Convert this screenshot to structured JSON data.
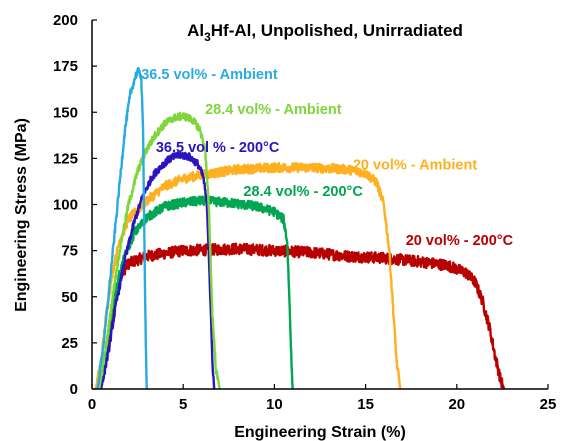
{
  "chart_data": {
    "type": "line",
    "title": {
      "main": "Al",
      "sub": "3",
      "rest": "Hf-Al, Unpolished, Unirradiated"
    },
    "xlabel": "Engineering  Strain (%)",
    "ylabel": "Engineering  Stress (MPa)",
    "xlim": [
      0,
      25
    ],
    "ylim": [
      0,
      200
    ],
    "xticks": [
      0,
      5,
      10,
      15,
      20,
      25
    ],
    "yticks": [
      0,
      25,
      50,
      75,
      100,
      125,
      150,
      175,
      200
    ],
    "grid": false,
    "legend": "inline labels",
    "series": [
      {
        "name": "20 vol% - 200°C",
        "color": "#b80000",
        "noise": 3,
        "points": [
          [
            0.3,
            0
          ],
          [
            0.6,
            8
          ],
          [
            1.0,
            30
          ],
          [
            1.3,
            50
          ],
          [
            1.6,
            62
          ],
          [
            2.0,
            68
          ],
          [
            3.0,
            72
          ],
          [
            5.0,
            75
          ],
          [
            8.0,
            76
          ],
          [
            10.0,
            75
          ],
          [
            12.0,
            74
          ],
          [
            14.0,
            72
          ],
          [
            16.0,
            71
          ],
          [
            18.0,
            69
          ],
          [
            19.5,
            67
          ],
          [
            20.5,
            63
          ],
          [
            21.0,
            58
          ],
          [
            21.4,
            48
          ],
          [
            21.8,
            33
          ],
          [
            22.1,
            18
          ],
          [
            22.4,
            5
          ],
          [
            22.6,
            0
          ]
        ]
      },
      {
        "name": "20 vol% - Ambient",
        "color": "#ffb020",
        "noise": 2.5,
        "points": [
          [
            0.2,
            0
          ],
          [
            0.5,
            15
          ],
          [
            0.8,
            42
          ],
          [
            1.1,
            62
          ],
          [
            1.5,
            80
          ],
          [
            2.0,
            92
          ],
          [
            3.0,
            102
          ],
          [
            4.0,
            110
          ],
          [
            5.0,
            114
          ],
          [
            6.0,
            116
          ],
          [
            8.0,
            119
          ],
          [
            10.0,
            120
          ],
          [
            12.0,
            120
          ],
          [
            14.0,
            119
          ],
          [
            15.0,
            117
          ],
          [
            15.6,
            112
          ],
          [
            16.0,
            100
          ],
          [
            16.3,
            75
          ],
          [
            16.5,
            45
          ],
          [
            16.7,
            15
          ],
          [
            16.9,
            0
          ]
        ]
      },
      {
        "name": "28.4 vol% - 200°C",
        "color": "#00a651",
        "noise": 2.5,
        "points": [
          [
            0.4,
            0
          ],
          [
            0.7,
            15
          ],
          [
            1.0,
            38
          ],
          [
            1.4,
            58
          ],
          [
            1.8,
            72
          ],
          [
            2.3,
            84
          ],
          [
            3.0,
            93
          ],
          [
            4.0,
            99
          ],
          [
            5.0,
            101
          ],
          [
            6.0,
            102
          ],
          [
            7.5,
            101
          ],
          [
            9.0,
            99
          ],
          [
            10.0,
            96
          ],
          [
            10.5,
            92
          ],
          [
            10.7,
            80
          ],
          [
            10.8,
            55
          ],
          [
            10.9,
            25
          ],
          [
            11.0,
            0
          ]
        ]
      },
      {
        "name": "36.5 vol % - 200°C",
        "color": "#2a14c0",
        "noise": 2,
        "points": [
          [
            0.5,
            0
          ],
          [
            0.9,
            20
          ],
          [
            1.3,
            45
          ],
          [
            1.8,
            70
          ],
          [
            2.3,
            90
          ],
          [
            2.8,
            105
          ],
          [
            3.3,
            115
          ],
          [
            3.8,
            121
          ],
          [
            4.3,
            125
          ],
          [
            4.8,
            127
          ],
          [
            5.3,
            126
          ],
          [
            5.8,
            122
          ],
          [
            6.1,
            115
          ],
          [
            6.3,
            100
          ],
          [
            6.4,
            75
          ],
          [
            6.5,
            45
          ],
          [
            6.6,
            15
          ],
          [
            6.7,
            0
          ]
        ]
      },
      {
        "name": "28.4 vol% - Ambient",
        "color": "#7fd63a",
        "noise": 2,
        "points": [
          [
            0.4,
            0
          ],
          [
            0.8,
            25
          ],
          [
            1.2,
            55
          ],
          [
            1.6,
            80
          ],
          [
            2.0,
            100
          ],
          [
            2.5,
            118
          ],
          [
            3.0,
            130
          ],
          [
            3.5,
            138
          ],
          [
            4.0,
            144
          ],
          [
            4.5,
            147
          ],
          [
            5.0,
            148
          ],
          [
            5.5,
            146
          ],
          [
            5.9,
            141
          ],
          [
            6.2,
            130
          ],
          [
            6.4,
            100
          ],
          [
            6.5,
            70
          ],
          [
            6.6,
            40
          ],
          [
            6.8,
            10
          ],
          [
            7.0,
            0
          ]
        ]
      },
      {
        "name": "36.5 vol% - Ambient",
        "color": "#29abe2",
        "noise": 2,
        "points": [
          [
            0.3,
            0
          ],
          [
            0.7,
            30
          ],
          [
            1.1,
            70
          ],
          [
            1.5,
            110
          ],
          [
            1.8,
            140
          ],
          [
            2.1,
            160
          ],
          [
            2.4,
            170
          ],
          [
            2.6,
            173
          ],
          [
            2.7,
            168
          ],
          [
            2.8,
            140
          ],
          [
            2.85,
            100
          ],
          [
            2.9,
            60
          ],
          [
            2.95,
            25
          ],
          [
            3.0,
            0
          ]
        ]
      }
    ],
    "labels": [
      {
        "text": "36.5 vol% - Ambient",
        "color": "#29abe2",
        "x": 2.7,
        "y": 168
      },
      {
        "text": "28.4 vol% - Ambient",
        "color": "#7fd63a",
        "x": 6.2,
        "y": 149
      },
      {
        "text": "36.5 vol % - 200°C",
        "color": "#2a14c0",
        "x": 3.5,
        "y": 128.5
      },
      {
        "text": "20 vol% - Ambient",
        "color": "#ffb020",
        "x": 14.3,
        "y": 119
      },
      {
        "text": "28.4 vol% - 200°C",
        "color": "#00a651",
        "x": 8.3,
        "y": 104.5
      },
      {
        "text": "20 vol% - 200°C",
        "color": "#b80000",
        "x": 17.2,
        "y": 78
      }
    ]
  }
}
